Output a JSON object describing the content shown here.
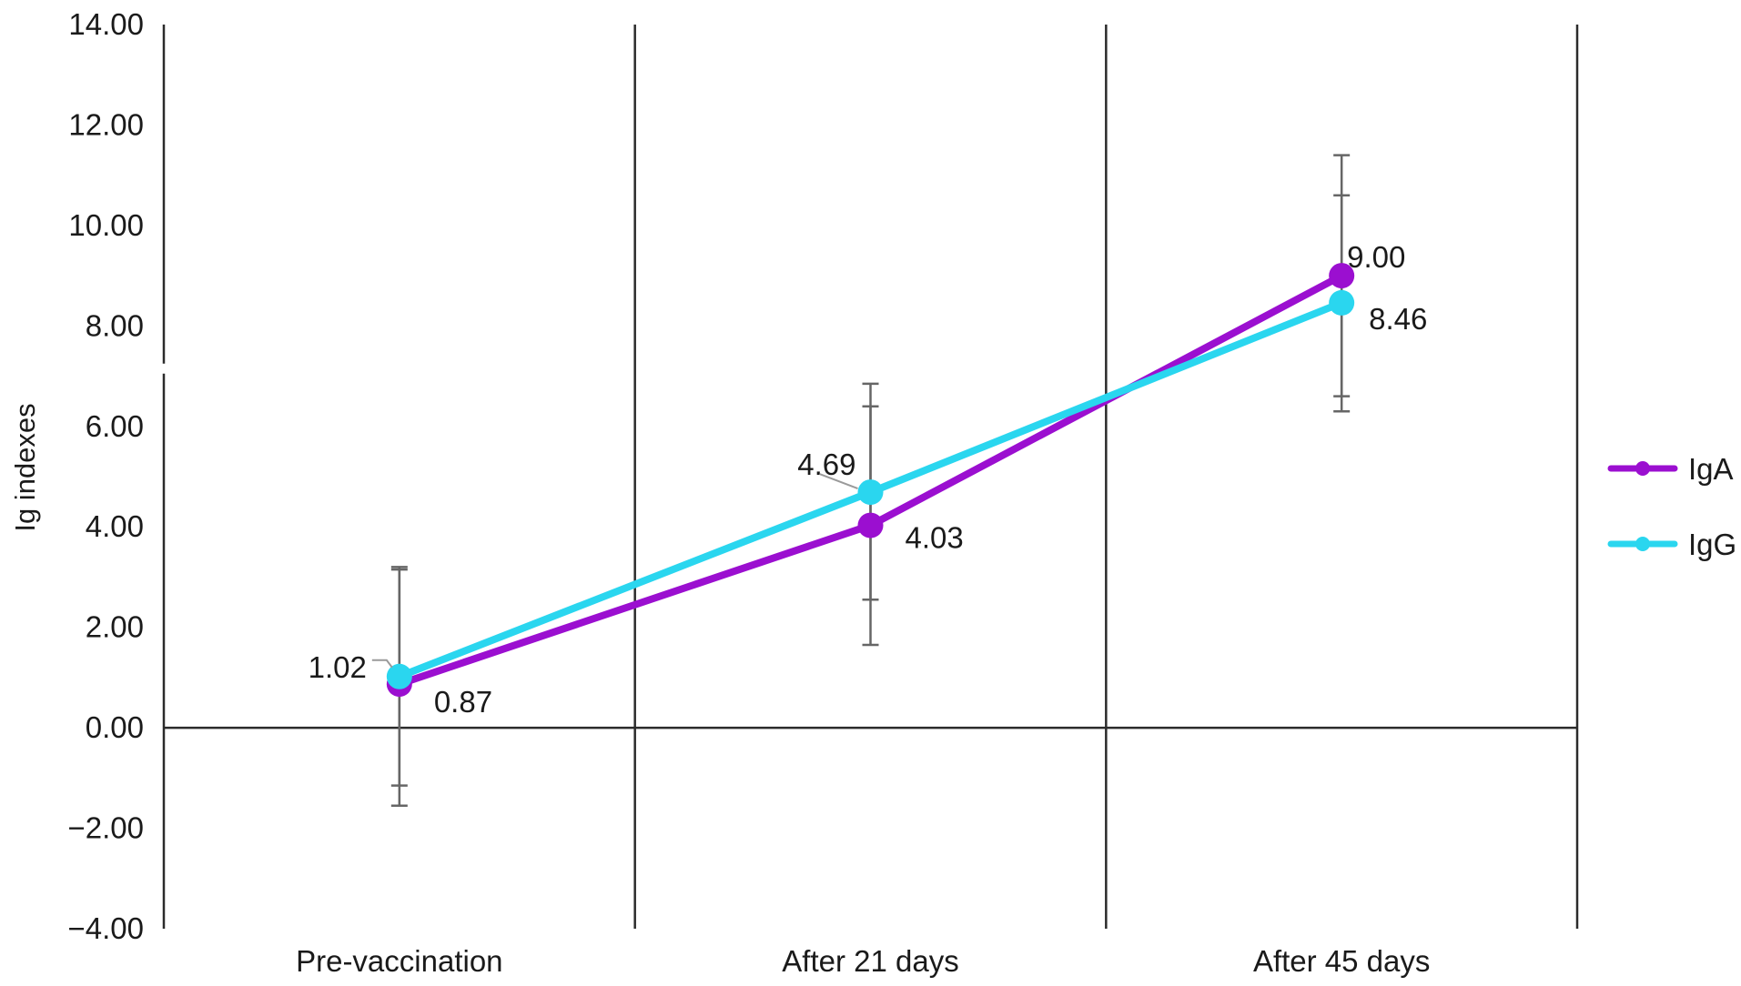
{
  "chart_data": {
    "type": "line",
    "categories": [
      "Pre-vaccination",
      "After 21 days",
      "After 45 days"
    ],
    "ylabel": "Ig indexes",
    "xlabel": "",
    "title": "",
    "ylim": [
      -4,
      14
    ],
    "y_ticks": [
      14,
      12,
      10,
      8,
      6,
      4,
      2,
      0,
      -2,
      -4
    ],
    "y_tick_labels": [
      "14.00",
      "12.00",
      "10.00",
      "8.00",
      "6.00",
      "4.00",
      "2.00",
      "0.00",
      "−2.00",
      "−4.00"
    ],
    "grid": "vertical category separators",
    "legend_position": "right",
    "series": [
      {
        "name": "IgA",
        "color": "#9b0fd0",
        "values": [
          0.87,
          4.03,
          9.0
        ],
        "value_labels": [
          "0.87",
          "4.03",
          "9.00"
        ],
        "error_low": [
          -1.55,
          1.65,
          6.3
        ],
        "error_high": [
          3.2,
          6.4,
          11.4
        ]
      },
      {
        "name": "IgG",
        "color": "#2ad6ef",
        "values": [
          1.02,
          4.69,
          8.46
        ],
        "value_labels": [
          "1.02",
          "4.69",
          "8.46"
        ],
        "error_low": [
          -1.15,
          2.55,
          6.6
        ],
        "error_high": [
          3.15,
          6.85,
          10.6
        ]
      }
    ]
  }
}
